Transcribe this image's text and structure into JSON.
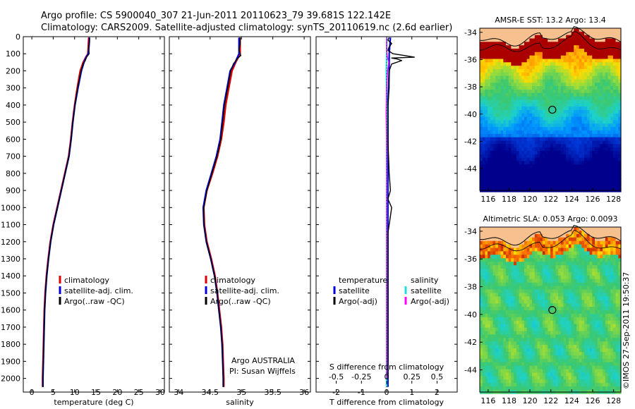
{
  "header": {
    "line1": "Argo profile: CS 5900040_307 21-Jun-2011 20110623_79 39.681S 122.142E",
    "line2": "Climatology: CARS2009. Satellite-adjusted climatology: synTS_20110619.nc (2.6d earlier)"
  },
  "colors": {
    "climatology": "#e00000",
    "satellite": "#0000dd",
    "argo": "#000000",
    "sal_satellite": "#22dddd",
    "sal_argo": "#ff00ff"
  },
  "credit": "©IMOS 27-Sep-2011 19:50:37",
  "chart_data": [
    {
      "type": "line",
      "id": "temperature",
      "xlabel": "temperature (deg C)",
      "ylabel": "",
      "xlim": [
        -2,
        31
      ],
      "ylim": [
        2080,
        0
      ],
      "xticks": [
        "0",
        "5",
        "10",
        "15",
        "20",
        "25",
        "30"
      ],
      "xtick_values": [
        0,
        5,
        10,
        15,
        20,
        25,
        30
      ],
      "yticks": [
        "0",
        "100",
        "200",
        "300",
        "400",
        "500",
        "600",
        "700",
        "800",
        "900",
        "1000",
        "1100",
        "1200",
        "1300",
        "1400",
        "1500",
        "1600",
        "1700",
        "1800",
        "1900",
        "2000"
      ],
      "ytick_values": [
        0,
        100,
        200,
        300,
        400,
        500,
        600,
        700,
        800,
        900,
        1000,
        1100,
        1200,
        1300,
        1400,
        1500,
        1600,
        1700,
        1800,
        1900,
        2000
      ],
      "legend": [
        "climatology",
        "satellite-adj. clim.",
        "Argo(..raw -QC)"
      ],
      "series": [
        {
          "name": "climatology",
          "depth": [
            5,
            50,
            100,
            120,
            150,
            200,
            300,
            400,
            500,
            600,
            700,
            800,
            900,
            1000,
            1100,
            1200,
            1300,
            1400,
            1500,
            1600,
            1700,
            1800,
            1900,
            2000,
            2050
          ],
          "values": [
            13.3,
            13.2,
            13.1,
            12.6,
            12.0,
            11.3,
            10.6,
            10.0,
            9.5,
            9.1,
            8.6,
            7.7,
            6.8,
            5.9,
            5.0,
            4.3,
            3.8,
            3.4,
            3.1,
            2.9,
            2.8,
            2.7,
            2.6,
            2.5,
            2.5
          ]
        },
        {
          "name": "satellite-adj. clim.",
          "depth": [
            5,
            50,
            100,
            120,
            150,
            200,
            300,
            400,
            500,
            600,
            700,
            800,
            900,
            1000,
            1100,
            1200,
            1300,
            1400,
            1500,
            1600,
            1700,
            1800,
            1900,
            2000,
            2050
          ],
          "values": [
            13.5,
            13.4,
            13.2,
            12.7,
            12.2,
            11.6,
            10.8,
            10.1,
            9.6,
            9.2,
            8.7,
            7.8,
            6.9,
            6.0,
            5.1,
            4.4,
            3.9,
            3.5,
            3.2,
            3.0,
            2.9,
            2.8,
            2.7,
            2.6,
            2.6
          ]
        },
        {
          "name": "Argo(..raw -QC)",
          "depth": [
            5,
            30,
            60,
            100,
            120,
            140,
            160,
            200,
            300,
            400,
            500,
            600,
            700,
            800,
            900,
            1000,
            1100,
            1200,
            1300,
            1400,
            1500,
            1600,
            1700,
            1800,
            1900,
            2000,
            2050
          ],
          "values": [
            13.4,
            13.5,
            13.3,
            13.4,
            12.8,
            12.5,
            12.0,
            11.5,
            10.7,
            10.1,
            9.6,
            9.2,
            8.7,
            7.8,
            6.9,
            6.0,
            5.1,
            4.4,
            3.9,
            3.5,
            3.2,
            3.0,
            2.9,
            2.8,
            2.7,
            2.6,
            2.6
          ]
        }
      ]
    },
    {
      "type": "line",
      "id": "salinity",
      "xlabel": "salinity",
      "xlim": [
        33.85,
        36.1
      ],
      "ylim": [
        2080,
        0
      ],
      "xticks": [
        "34",
        "34.5",
        "35",
        "35.5",
        "36"
      ],
      "xtick_values": [
        34,
        34.5,
        35,
        35.5,
        36
      ],
      "legend": [
        "climatology",
        "satellite-adj. clim.",
        "Argo(..raw -QC)"
      ],
      "annotation": [
        "Argo AUSTRALIA",
        "PI: Susan Wijffels"
      ],
      "series": [
        {
          "name": "climatology",
          "depth": [
            5,
            100,
            150,
            200,
            300,
            400,
            500,
            600,
            700,
            800,
            900,
            1000,
            1100,
            1200,
            1300,
            1400,
            1500,
            1600,
            1700,
            1800,
            1900,
            2000,
            2050
          ],
          "values": [
            34.98,
            34.98,
            34.91,
            34.85,
            34.8,
            34.75,
            34.72,
            34.68,
            34.62,
            34.54,
            34.45,
            34.4,
            34.41,
            34.45,
            34.52,
            34.58,
            34.62,
            34.65,
            34.68,
            34.7,
            34.71,
            34.72,
            34.72
          ]
        },
        {
          "name": "satellite-adj. clim.",
          "depth": [
            5,
            100,
            150,
            200,
            300,
            400,
            500,
            600,
            700,
            800,
            900,
            1000,
            1100,
            1200,
            1300,
            1400,
            1500,
            1600,
            1700,
            1800,
            1900,
            2000,
            2050
          ],
          "values": [
            34.96,
            34.96,
            34.9,
            34.82,
            34.77,
            34.72,
            34.69,
            34.66,
            34.6,
            34.52,
            34.44,
            34.39,
            34.4,
            34.44,
            34.51,
            34.57,
            34.61,
            34.64,
            34.67,
            34.69,
            34.7,
            34.71,
            34.71
          ]
        },
        {
          "name": "Argo(..raw -QC)",
          "depth": [
            5,
            40,
            80,
            110,
            130,
            160,
            200,
            300,
            400,
            500,
            600,
            700,
            800,
            900,
            1000,
            1100,
            1200,
            1300,
            1400,
            1500,
            1600,
            1700,
            1800,
            1900,
            2000,
            2050
          ],
          "values": [
            34.98,
            34.98,
            34.96,
            34.99,
            34.93,
            34.87,
            34.83,
            34.78,
            34.73,
            34.7,
            34.67,
            34.61,
            34.53,
            34.45,
            34.4,
            34.4,
            34.44,
            34.51,
            34.57,
            34.61,
            34.64,
            34.67,
            34.69,
            34.7,
            34.71,
            34.71
          ]
        }
      ]
    },
    {
      "type": "line",
      "id": "difference",
      "xlabel": "T difference from climatology",
      "xlabel2": "S difference from climatology",
      "xlim": [
        -2.8,
        2.8
      ],
      "ylim": [
        2080,
        0
      ],
      "xticks": [
        "-2",
        "-1",
        "0",
        "1",
        "2"
      ],
      "xtick_values": [
        -2,
        -1,
        0,
        1,
        2
      ],
      "xticks2": [
        "-0.5",
        "-0.25",
        "0",
        "0.25",
        "0.5"
      ],
      "xtick2_values": [
        -0.5,
        -0.25,
        0,
        0.25,
        0.5
      ],
      "legend_temperature_title": "temperature",
      "legend_salinity_title": "salinity",
      "legend_temperature": [
        "satellite",
        "Argo(-adj)"
      ],
      "legend_salinity": [
        "satellite",
        "Argo(-adj)"
      ],
      "series": [
        {
          "name": "T satellite",
          "depth": [
            5,
            100,
            200,
            400,
            600,
            800,
            1000,
            1200,
            1500,
            2000,
            2050
          ],
          "values": [
            0.15,
            0.1,
            0.1,
            0.05,
            0.05,
            0.05,
            0.05,
            0.05,
            0.05,
            0.05,
            0.05
          ]
        },
        {
          "name": "T Argo(-adj)",
          "depth": [
            5,
            20,
            40,
            60,
            80,
            100,
            110,
            120,
            125,
            130,
            140,
            160,
            200,
            300,
            400,
            600,
            800,
            900,
            950,
            1000,
            1050,
            1100,
            1150,
            1200,
            1300,
            1400,
            1500,
            2000
          ],
          "values": [
            0.1,
            0.05,
            0.2,
            0.1,
            0.05,
            0.25,
            0.7,
            1.1,
            0.2,
            0.4,
            0.6,
            0.2,
            0.1,
            0.1,
            0.05,
            0.05,
            0.1,
            0.15,
            0.05,
            0.2,
            0.15,
            0.1,
            0.05,
            0.05,
            0.05,
            0.05,
            0.05,
            0.05
          ]
        },
        {
          "name": "S satellite",
          "depth": [
            5,
            100,
            200,
            400,
            600,
            800,
            1000,
            1200,
            1500,
            2000,
            2050
          ],
          "values": [
            0.01,
            0.0,
            -0.01,
            0.0,
            0.0,
            0.0,
            0.0,
            0.0,
            0.0,
            0.0,
            0.0
          ]
        },
        {
          "name": "S Argo(-adj)",
          "depth": [
            5,
            40,
            80,
            110,
            130,
            150,
            200,
            300,
            450,
            600,
            800,
            1000,
            2000
          ],
          "values": [
            0.0,
            0.0,
            0.0,
            0.02,
            0.05,
            0.08,
            0.04,
            0.0,
            -0.02,
            0.0,
            0.0,
            0.0,
            0.0
          ]
        }
      ]
    },
    {
      "type": "heatmap",
      "id": "sst_map",
      "title": "AMSR-E SST: 13.2 Argo: 13.4",
      "xlim": [
        115.2,
        128.7
      ],
      "ylim": [
        -45.6,
        -33.7
      ],
      "xticks": [
        "116",
        "118",
        "120",
        "122",
        "124",
        "126",
        "128"
      ],
      "xtick_values": [
        116,
        118,
        120,
        122,
        124,
        126,
        128
      ],
      "yticks": [
        "-34",
        "-36",
        "-38",
        "-40",
        "-42",
        "-44"
      ],
      "ytick_values": [
        -34,
        -36,
        -38,
        -40,
        -42,
        -44
      ],
      "marker": {
        "lon": 122.14,
        "lat": -39.68
      }
    },
    {
      "type": "heatmap",
      "id": "sla_map",
      "title": "Altimetric SLA: 0.053 Argo: 0.0093",
      "xlim": [
        115.2,
        128.7
      ],
      "ylim": [
        -45.6,
        -33.7
      ],
      "xticks": [
        "116",
        "118",
        "120",
        "122",
        "124",
        "126",
        "128"
      ],
      "xtick_values": [
        116,
        118,
        120,
        122,
        124,
        126,
        128
      ],
      "yticks": [
        "-34",
        "-36",
        "-38",
        "-40",
        "-42",
        "-44"
      ],
      "ytick_values": [
        -34,
        -36,
        -38,
        -40,
        -42,
        -44
      ],
      "marker": {
        "lon": 122.14,
        "lat": -39.68
      }
    }
  ]
}
